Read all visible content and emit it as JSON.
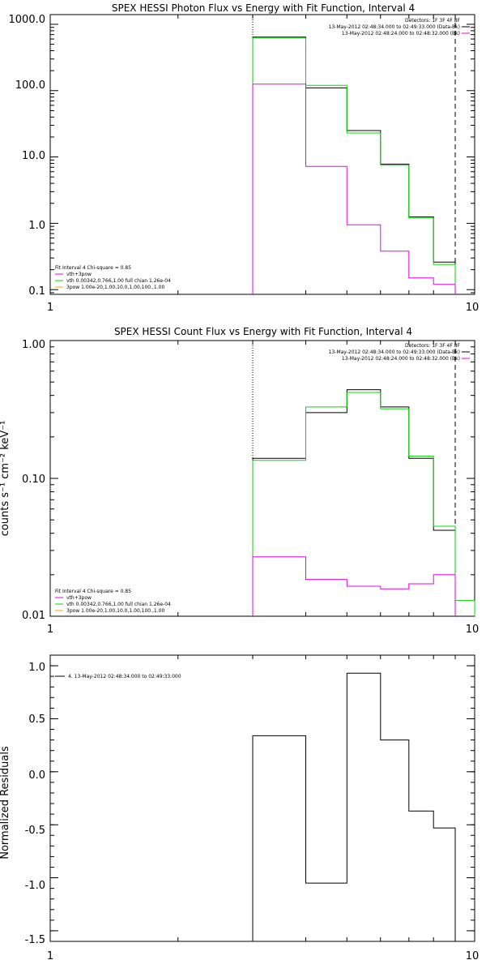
{
  "colors": {
    "data": "#000000",
    "model": "#00dd00",
    "background": "#ee00ee"
  },
  "chart_data": [
    {
      "id": "photon",
      "type": "line",
      "title": "SPEX HESSI Photon Flux vs Energy with Fit Function, Interval 4",
      "xlabel": "",
      "ylabel": "",
      "xscale": "log",
      "yscale": "log",
      "xlim": [
        1,
        10
      ],
      "ylim": [
        0.085,
        1400
      ],
      "xtick_values": [
        1,
        10
      ],
      "xtick_labels": [
        "1",
        "10"
      ],
      "ytick_values": [
        0.1,
        1,
        10,
        100,
        1000
      ],
      "ytick_labels": [
        "0.1",
        "1.0",
        "10.0",
        "100.0",
        "1000.0"
      ],
      "vlines": [
        {
          "x": 3.0,
          "style": "dotted"
        },
        {
          "x": 9.0,
          "style": "dashed"
        }
      ],
      "x_edges": [
        3.0,
        4.0,
        5.0,
        6.0,
        7.0,
        8.0,
        9.0
      ],
      "series": [
        {
          "label": "",
          "role": "data",
          "color": "#000000",
          "values": [
            640,
            110,
            25,
            7.8,
            1.25,
            0.26
          ]
        },
        {
          "label": "",
          "role": "model",
          "color": "#00dd00",
          "values": [
            620,
            120,
            23,
            7.5,
            1.2,
            0.24
          ]
        },
        {
          "label": "",
          "role": "background",
          "color": "#ee00ee",
          "values": [
            125,
            7.2,
            0.95,
            0.38,
            0.15,
            0.12
          ]
        }
      ],
      "legend_top_right": {
        "lines": [
          {
            "text": "Detectors: 1F 3F 4F 8F",
            "color": ""
          },
          {
            "text": "13-May-2012 02:48:34.000 to 02:49:33.000 (Data-Bk)",
            "color": "#000000"
          },
          {
            "text": "13-May-2012 02:48:24.000 to 02:48:32.000 (Bk)",
            "color": "#ee00ee"
          }
        ]
      },
      "legend_bottom_left": {
        "lines": [
          {
            "text": "Fit Interval  4   Chi-square = 0.85",
            "color": ""
          },
          {
            "text": "vth+3pow",
            "color": "#ee00ee"
          },
          {
            "text": "vth 0.00342,0.766,1.00   full chian 1.26e-04",
            "color": "#00dd00"
          },
          {
            "text": "3pow 1.00e-20,1.00,10.0,1.00,100.,1.00",
            "color": "#ffa500"
          }
        ]
      }
    },
    {
      "id": "count",
      "type": "line",
      "title": "SPEX HESSI Count Flux vs Energy with Fit Function, Interval 4",
      "xlabel": "",
      "ylabel": "counts s⁻¹ cm⁻² keV⁻¹",
      "xscale": "log",
      "yscale": "log",
      "xlim": [
        1,
        10
      ],
      "ylim": [
        0.01,
        1.0
      ],
      "xtick_values": [
        1,
        10
      ],
      "xtick_labels": [
        "1",
        "10"
      ],
      "ytick_values": [
        0.01,
        0.1,
        1.0
      ],
      "ytick_labels": [
        "0.01",
        "0.10",
        "1.00"
      ],
      "vlines": [
        {
          "x": 3.0,
          "style": "dotted"
        },
        {
          "x": 9.0,
          "style": "dashed"
        }
      ],
      "x_edges": [
        3.0,
        4.0,
        5.0,
        6.0,
        7.0,
        8.0,
        9.0,
        10.0
      ],
      "series": [
        {
          "label": "",
          "role": "data",
          "color": "#000000",
          "values": [
            0.14,
            0.3,
            0.44,
            0.33,
            0.14,
            0.042
          ]
        },
        {
          "label": "",
          "role": "model",
          "color": "#00dd00",
          "values": [
            0.135,
            0.33,
            0.42,
            0.32,
            0.145,
            0.045,
            0.013
          ]
        },
        {
          "label": "",
          "role": "background",
          "color": "#ee00ee",
          "values": [
            0.027,
            0.0185,
            0.0165,
            0.0158,
            0.0172,
            0.02
          ]
        }
      ],
      "legend_top_right": {
        "lines": [
          {
            "text": "Detectors: 1F 3F 4F 8F",
            "color": ""
          },
          {
            "text": "13-May-2012 02:48:34.000 to 02:49:33.000 (Data-Bk)",
            "color": "#000000"
          },
          {
            "text": "13-May-2012 02:48:24.000 to 02:48:32.000 (Bk)",
            "color": "#ee00ee"
          }
        ]
      },
      "legend_bottom_left": {
        "lines": [
          {
            "text": "Fit Interval  4   Chi-square = 0.85",
            "color": ""
          },
          {
            "text": "vth+3pow",
            "color": "#ee00ee"
          },
          {
            "text": "vth 0.00342,0.766,1.00   full chian 1.26e-04",
            "color": "#00dd00"
          },
          {
            "text": "3pow 1.00e-20,1.00,10.0,1.00,100.,1.00",
            "color": "#ffa500"
          }
        ]
      }
    },
    {
      "id": "resid",
      "type": "line",
      "title": "",
      "xlabel": "",
      "ylabel": "Normalized Residuals",
      "xscale": "log",
      "yscale": "linear",
      "xlim": [
        1,
        10
      ],
      "ylim": [
        -1.6,
        1.1
      ],
      "xtick_values": [
        1,
        10
      ],
      "xtick_labels": [
        "1",
        "10"
      ],
      "ytick_values": [
        -1.5,
        -1.0,
        -0.5,
        0.0,
        0.5,
        1.0
      ],
      "ytick_labels": [
        "-1.5",
        "-1.0",
        "-0.5",
        "0.0",
        "0.5",
        "1.0"
      ],
      "vlines": [],
      "x_edges": [
        3.0,
        4.0,
        5.0,
        6.0,
        7.0,
        8.0,
        9.0
      ],
      "series": [
        {
          "label": "4. 13-May-2012 02:48:34.000 to 02:49:33.000",
          "role": "residual",
          "color": "#000000",
          "values": [
            0.34,
            -1.05,
            0.93,
            0.3,
            -0.37,
            -0.53
          ]
        }
      ],
      "legend_top_right": {
        "lines": []
      },
      "legend_bottom_left": {
        "lines": []
      },
      "legend_top_left": {
        "lines": [
          {
            "text": "4. 13-May-2012 02:48:34.000 to 02:49:33.000",
            "color": "#000000"
          }
        ]
      }
    }
  ]
}
